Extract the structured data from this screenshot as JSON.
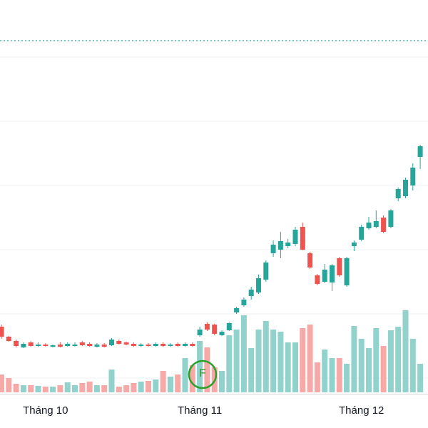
{
  "chart_data": {
    "type": "candlestick",
    "categories": [
      null,
      null,
      null,
      null,
      null,
      null,
      "Tháng 10",
      null,
      null,
      null,
      null,
      null,
      null,
      null,
      null,
      null,
      null,
      null,
      null,
      null,
      null,
      null,
      null,
      null,
      null,
      null,
      null,
      "Tháng 11",
      null,
      null,
      null,
      null,
      null,
      null,
      null,
      null,
      null,
      null,
      null,
      null,
      null,
      null,
      null,
      null,
      null,
      null,
      null,
      null,
      null,
      "Tháng 12",
      null,
      null,
      null,
      null,
      null,
      null,
      null,
      null
    ],
    "open": [
      28.4,
      25.6,
      24.4,
      22.6,
      24,
      23,
      23.4,
      22.8,
      23.4,
      23,
      23,
      24,
      23.6,
      22.8,
      23.4,
      23.2,
      24.4,
      24,
      23.6,
      23,
      23.4,
      23,
      23.6,
      23,
      23.6,
      23,
      23.6,
      26,
      29.2,
      29,
      26,
      27.4,
      32.4,
      34.4,
      37,
      38,
      41.6,
      49,
      50,
      51,
      51.6,
      56.4,
      49,
      42.8,
      41,
      40.8,
      47.6,
      40,
      51,
      52.8,
      56,
      56.4,
      59,
      56.4,
      64.4,
      65,
      68,
      76
    ],
    "high": [
      29,
      25.8,
      24.8,
      24,
      24.4,
      24,
      23.8,
      23.4,
      24,
      24,
      24,
      24.4,
      24,
      23.8,
      23.8,
      25.2,
      24.8,
      24.2,
      24,
      23.8,
      23.8,
      24,
      24,
      23.8,
      24,
      24,
      24,
      28.4,
      29.6,
      29.2,
      27.4,
      29.6,
      34,
      36.6,
      39.6,
      43,
      47,
      52.6,
      55,
      53,
      56.4,
      57.6,
      49.4,
      43.2,
      46,
      46,
      48,
      48,
      52.6,
      57,
      59.2,
      61,
      59.6,
      61.4,
      67.4,
      70.2,
      74.2,
      79.4
    ],
    "low": [
      25,
      24.2,
      22.6,
      22.4,
      22.8,
      22.8,
      22.8,
      22.6,
      22.6,
      22.8,
      22.8,
      23,
      22.8,
      22.6,
      22.6,
      23,
      23.4,
      23.2,
      22.8,
      22.8,
      22.8,
      22.8,
      22.8,
      22.8,
      22.8,
      22.8,
      22.8,
      25.6,
      27.2,
      26,
      25.8,
      27.2,
      32,
      34,
      36,
      37.6,
      41,
      48,
      47.6,
      50.4,
      51,
      49.8,
      44.6,
      40,
      40.6,
      38.4,
      42.4,
      39.6,
      49.6,
      52.4,
      55.6,
      56,
      54.6,
      56,
      63.6,
      64.4,
      66.6,
      72.6
    ],
    "close": [
      25.6,
      24.4,
      23,
      23.6,
      23,
      23.4,
      23,
      23.2,
      22.8,
      23.6,
      23.4,
      23.2,
      23,
      23.4,
      22.8,
      24.8,
      23.6,
      23.4,
      23,
      23.4,
      23,
      23.6,
      23,
      23.4,
      23,
      23.6,
      23,
      27.6,
      27.6,
      26.4,
      27,
      29.4,
      33.6,
      36,
      38.8,
      42,
      46.4,
      51.4,
      52.4,
      52,
      55.6,
      50,
      45,
      40.4,
      44.4,
      45.6,
      42.8,
      47.6,
      52,
      56.4,
      57.6,
      58,
      55,
      61,
      67,
      69.6,
      73,
      79
    ],
    "volume": [
      50,
      40,
      24,
      20,
      20,
      18,
      16,
      16,
      20,
      28,
      20,
      26,
      30,
      20,
      20,
      64,
      16,
      20,
      26,
      30,
      32,
      36,
      60,
      44,
      50,
      96,
      76,
      144,
      126,
      70,
      60,
      160,
      176,
      216,
      124,
      176,
      200,
      176,
      170,
      140,
      140,
      180,
      190,
      84,
      120,
      96,
      96,
      80,
      186,
      150,
      124,
      180,
      130,
      174,
      184,
      230,
      150,
      80
    ],
    "up_color": "#26a69a",
    "down_color": "#ef5350",
    "up_volume_color": "#92d2cc",
    "down_volume_color": "#f7a9a7",
    "ylim": [
      0,
      120
    ],
    "volume_lim": [
      0,
      1100
    ],
    "price_line": 108.6,
    "marker": "F"
  }
}
